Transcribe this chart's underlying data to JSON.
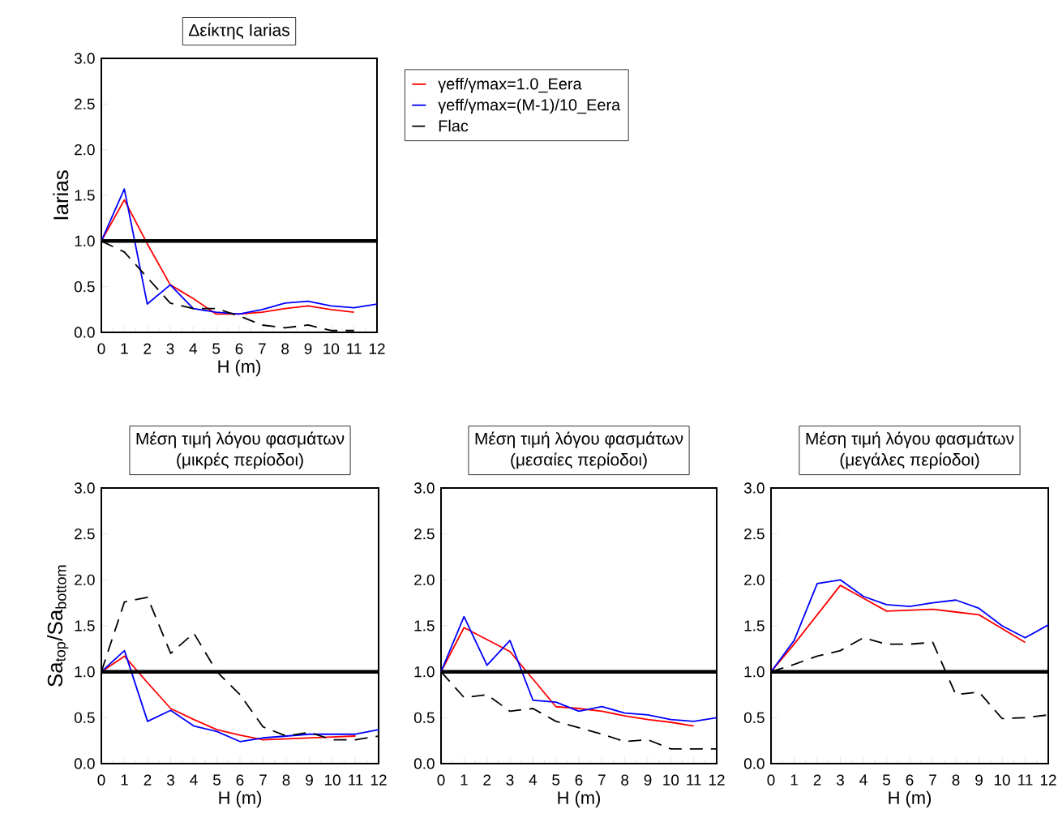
{
  "chart_data": [
    {
      "type": "line",
      "title": "Δείκτης Iarias",
      "xlabel": "H (m)",
      "ylabel": "Iarias",
      "x": [
        0,
        1,
        2,
        3,
        4,
        5,
        6,
        7,
        8,
        9,
        10,
        11,
        12
      ],
      "xlim": [
        0,
        12
      ],
      "xticks": [
        0,
        1,
        2,
        3,
        4,
        5,
        6,
        7,
        8,
        9,
        10,
        11,
        12
      ],
      "ylim": [
        0,
        3
      ],
      "yticks": [
        {
          "value": 0,
          "label": "0.0"
        },
        {
          "value": 0.5,
          "label": "0.5"
        },
        {
          "value": 1,
          "label": "1.0"
        },
        {
          "value": 1.5,
          "label": "1.5"
        },
        {
          "value": 2,
          "label": "2.0"
        },
        {
          "value": 2.5,
          "label": "2.5"
        },
        {
          "value": 3,
          "label": "3.0"
        }
      ],
      "legend": "right",
      "ref_lines": [
        {
          "axis": "y",
          "value": 1,
          "color": "#000000",
          "line_style": "solid"
        }
      ],
      "series": [
        {
          "name": "γeff/γmax=1.0_Eera",
          "color": "#ff0000",
          "line_style": "solid",
          "values": [
            1.0,
            1.45,
            0.97,
            0.52,
            0.37,
            0.2,
            0.2,
            0.22,
            0.26,
            0.29,
            0.25,
            0.22,
            null
          ]
        },
        {
          "name": "γeff/γmax=(M-1)/10_Eera",
          "color": "#0000ff",
          "line_style": "solid",
          "values": [
            1.0,
            1.57,
            0.31,
            0.52,
            0.26,
            0.22,
            0.2,
            0.25,
            0.32,
            0.34,
            0.29,
            0.27,
            0.31
          ]
        },
        {
          "name": "Flac",
          "color": "#000000",
          "line_style": "dashed",
          "values": [
            1.0,
            0.88,
            0.6,
            0.32,
            0.26,
            0.26,
            0.18,
            0.08,
            0.05,
            0.08,
            0.02,
            0.02,
            null
          ]
        }
      ]
    },
    {
      "type": "line",
      "title": "Μέση τιμή λόγου φασμάτων",
      "subtitle": "(μικρές περίοδοι)",
      "xlabel": "H (m)",
      "ylabel": "Sa$_{top}$/Sa$_{bottom}$",
      "x": [
        0,
        1,
        2,
        3,
        4,
        5,
        6,
        7,
        8,
        9,
        10,
        11,
        12
      ],
      "xlim": [
        0,
        12
      ],
      "xticks": [
        0,
        1,
        2,
        3,
        4,
        5,
        6,
        7,
        8,
        9,
        10,
        11,
        12
      ],
      "ylim": [
        0,
        3
      ],
      "yticks": [
        {
          "value": 0,
          "label": "0.0"
        },
        {
          "value": 0.5,
          "label": "0.5"
        },
        {
          "value": 1,
          "label": "1.0"
        },
        {
          "value": 1.5,
          "label": "1.5"
        },
        {
          "value": 2,
          "label": "2.0"
        },
        {
          "value": 2.5,
          "label": "2.5"
        },
        {
          "value": 3,
          "label": "3.0"
        }
      ],
      "ref_lines": [
        {
          "axis": "y",
          "value": 1,
          "color": "#000000",
          "line_style": "solid"
        }
      ],
      "series": [
        {
          "color": "#ff0000",
          "line_style": "solid",
          "values": [
            1.0,
            1.17,
            0.88,
            0.6,
            0.48,
            0.37,
            0.31,
            0.26,
            0.27,
            0.28,
            0.29,
            0.3,
            null
          ]
        },
        {
          "color": "#0000ff",
          "line_style": "solid",
          "values": [
            1.0,
            1.23,
            0.46,
            0.58,
            0.41,
            0.35,
            0.24,
            0.28,
            0.3,
            0.32,
            0.32,
            0.32,
            0.37
          ]
        },
        {
          "color": "#000000",
          "line_style": "dashed",
          "values": [
            1.0,
            1.76,
            1.81,
            1.2,
            1.42,
            1.0,
            0.75,
            0.4,
            0.3,
            0.34,
            0.26,
            0.26,
            0.3
          ]
        }
      ]
    },
    {
      "type": "line",
      "title": "Μέση τιμή λόγου φασμάτων",
      "subtitle": "(μεσαίες περίοδοι)",
      "xlabel": "H (m)",
      "x": [
        0,
        1,
        2,
        3,
        4,
        5,
        6,
        7,
        8,
        9,
        10,
        11,
        12
      ],
      "xlim": [
        0,
        12
      ],
      "xticks": [
        0,
        1,
        2,
        3,
        4,
        5,
        6,
        7,
        8,
        9,
        10,
        11,
        12
      ],
      "ylim": [
        0,
        3
      ],
      "yticks": [
        {
          "value": 0,
          "label": "0.0"
        },
        {
          "value": 0.5,
          "label": "0.5"
        },
        {
          "value": 1,
          "label": "1.0"
        },
        {
          "value": 1.5,
          "label": "1.5"
        },
        {
          "value": 2,
          "label": "2.0"
        },
        {
          "value": 2.5,
          "label": "2.5"
        },
        {
          "value": 3,
          "label": "3.0"
        }
      ],
      "ref_lines": [
        {
          "axis": "y",
          "value": 1,
          "color": "#000000",
          "line_style": "solid"
        }
      ],
      "series": [
        {
          "color": "#ff0000",
          "line_style": "solid",
          "values": [
            1.0,
            1.48,
            1.35,
            1.22,
            0.92,
            0.62,
            0.6,
            0.57,
            0.52,
            0.48,
            0.45,
            0.41,
            null
          ]
        },
        {
          "color": "#0000ff",
          "line_style": "solid",
          "values": [
            1.0,
            1.6,
            1.07,
            1.34,
            0.69,
            0.67,
            0.57,
            0.62,
            0.55,
            0.53,
            0.48,
            0.46,
            0.5
          ]
        },
        {
          "color": "#000000",
          "line_style": "dashed",
          "values": [
            1.0,
            0.72,
            0.75,
            0.57,
            0.6,
            0.46,
            0.39,
            0.32,
            0.24,
            0.26,
            0.16,
            0.16,
            0.16
          ]
        }
      ]
    },
    {
      "type": "line",
      "title": "Μέση τιμή λόγου φασμάτων",
      "subtitle": "(μεγάλες περίοδοι)",
      "xlabel": "H (m)",
      "x": [
        0,
        1,
        2,
        3,
        4,
        5,
        6,
        7,
        8,
        9,
        10,
        11,
        12
      ],
      "xlim": [
        0,
        12
      ],
      "xticks": [
        0,
        1,
        2,
        3,
        4,
        5,
        6,
        7,
        8,
        9,
        10,
        11,
        12
      ],
      "ylim": [
        0,
        3
      ],
      "yticks": [
        {
          "value": 0,
          "label": "0.0"
        },
        {
          "value": 0.5,
          "label": "0.5"
        },
        {
          "value": 1,
          "label": "1.0"
        },
        {
          "value": 1.5,
          "label": "1.5"
        },
        {
          "value": 2,
          "label": "2.0"
        },
        {
          "value": 2.5,
          "label": "2.5"
        },
        {
          "value": 3,
          "label": "3.0"
        }
      ],
      "ref_lines": [
        {
          "axis": "y",
          "value": 1,
          "color": "#000000",
          "line_style": "solid"
        }
      ],
      "series": [
        {
          "color": "#ff0000",
          "line_style": "solid",
          "values": [
            1.0,
            1.3,
            1.62,
            1.94,
            1.8,
            1.66,
            1.67,
            1.68,
            1.65,
            1.62,
            1.47,
            1.32,
            null
          ]
        },
        {
          "color": "#0000ff",
          "line_style": "solid",
          "values": [
            1.0,
            1.34,
            1.96,
            2.0,
            1.82,
            1.73,
            1.71,
            1.75,
            1.78,
            1.69,
            1.5,
            1.37,
            1.51
          ]
        },
        {
          "color": "#000000",
          "line_style": "dashed",
          "values": [
            1.0,
            1.08,
            1.17,
            1.23,
            1.37,
            1.3,
            1.3,
            1.32,
            0.75,
            0.78,
            0.49,
            0.5,
            0.53
          ]
        }
      ]
    }
  ]
}
